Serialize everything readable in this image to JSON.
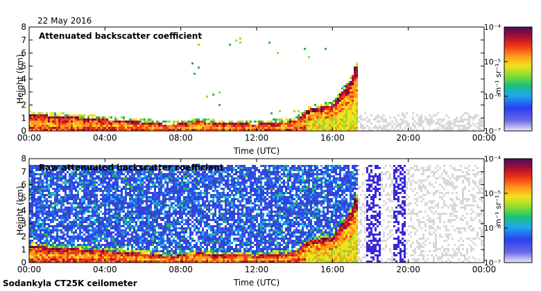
{
  "date": "22 May 2016",
  "footer": "Sodankyla CT25K ceilometer",
  "colors": {
    "bg": "#ffffff",
    "frame": "#000000",
    "noise": "#3344dd",
    "missing": "#d8d8d8",
    "ramp": [
      "#3a2ad6",
      "#2b6cf0",
      "#1ec0e8",
      "#22b35a",
      "#9be02b",
      "#f2e21e",
      "#ff9a1a",
      "#f43b14",
      "#b0102e",
      "#5a0a50"
    ]
  },
  "chart_data": [
    {
      "type": "heatmap",
      "title": "Attenuated backscatter coefficient",
      "xlabel": "Time (UTC)",
      "ylabel": "Height (km)",
      "xlim": [
        0,
        24
      ],
      "ylim": [
        0,
        8
      ],
      "xticks": [
        "00:00",
        "04:00",
        "08:00",
        "12:00",
        "16:00",
        "20:00",
        "00:00"
      ],
      "yticks": [
        "0",
        "1",
        "2",
        "3",
        "4",
        "5",
        "6",
        "7",
        "8"
      ],
      "colorbar": {
        "label": "m⁻¹ sr⁻¹",
        "scale": "log",
        "range": [
          1e-07,
          0.0001
        ],
        "ticks": [
          "10⁻⁷",
          "10⁻⁶",
          "10⁻⁵",
          "10⁻⁴"
        ]
      },
      "layer_top_km": [
        [
          0,
          1.3
        ],
        [
          2,
          1.1
        ],
        [
          4,
          0.9
        ],
        [
          6,
          0.7
        ],
        [
          7.5,
          0.5
        ],
        [
          8,
          0.6
        ],
        [
          9,
          0.75
        ],
        [
          10,
          0.6
        ],
        [
          12,
          0.55
        ],
        [
          14,
          0.75
        ],
        [
          14.8,
          1.7
        ],
        [
          16,
          2.0
        ],
        [
          17,
          4.0
        ],
        [
          17.2,
          5.0
        ]
      ],
      "raw": false
    },
    {
      "type": "heatmap",
      "title": "Raw attenuated backscatter coefficient",
      "xlabel": "Time (UTC)",
      "ylabel": "Height (km)",
      "xlim": [
        0,
        24
      ],
      "ylim": [
        0,
        8
      ],
      "xticks": [
        "00:00",
        "04:00",
        "08:00",
        "12:00",
        "16:00",
        "20:00",
        "00:00"
      ],
      "yticks": [
        "0",
        "1",
        "2",
        "3",
        "4",
        "5",
        "6",
        "7",
        "8"
      ],
      "colorbar": {
        "label": "m⁻¹ sr⁻¹",
        "scale": "log",
        "range": [
          1e-07,
          0.0001
        ],
        "ticks": [
          "10⁻⁷",
          "10⁻⁶",
          "10⁻⁵",
          "10⁻⁴"
        ]
      },
      "layer_top_km": [
        [
          0,
          1.3
        ],
        [
          2,
          1.1
        ],
        [
          4,
          0.9
        ],
        [
          6,
          0.7
        ],
        [
          7.5,
          0.5
        ],
        [
          8,
          0.6
        ],
        [
          9,
          0.75
        ],
        [
          10,
          0.6
        ],
        [
          12,
          0.55
        ],
        [
          14,
          0.75
        ],
        [
          14.8,
          1.7
        ],
        [
          16,
          2.0
        ],
        [
          17,
          4.0
        ],
        [
          17.2,
          5.0
        ]
      ],
      "raw": true
    }
  ]
}
